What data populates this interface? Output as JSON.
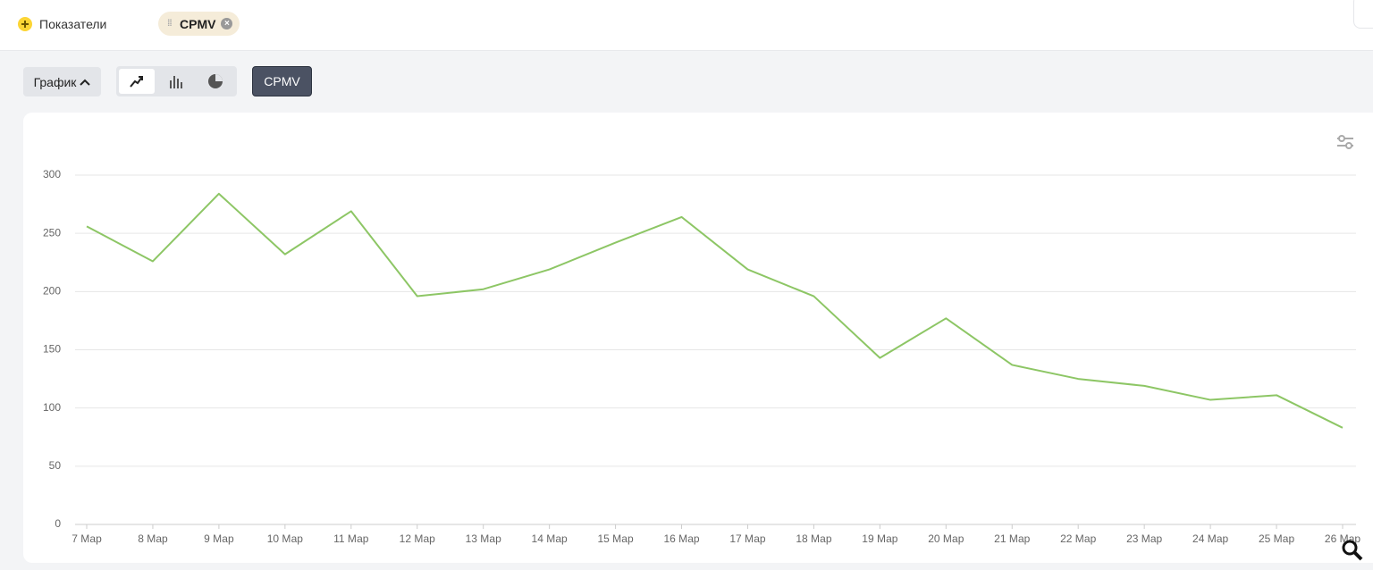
{
  "toolbar": {
    "metrics_button": "Показатели",
    "metric_chip": "CPMV",
    "view_button": "График",
    "metric_button": "CPMV"
  },
  "chart_data": {
    "type": "line",
    "categories": [
      "7 Мар",
      "8 Мар",
      "9 Мар",
      "10 Мар",
      "11 Мар",
      "12 Мар",
      "13 Мар",
      "14 Мар",
      "15 Мар",
      "16 Мар",
      "17 Мар",
      "18 Мар",
      "19 Мар",
      "20 Мар",
      "21 Мар",
      "22 Мар",
      "23 Мар",
      "24 Мар",
      "25 Мар",
      "26 Мар"
    ],
    "values": [
      256,
      226,
      284,
      232,
      269,
      196,
      202,
      219,
      242,
      264,
      219,
      196,
      143,
      177,
      137,
      125,
      119,
      107,
      111,
      83
    ],
    "color": "#8dc665",
    "ylim": [
      0,
      300
    ],
    "yticks": [
      0,
      50,
      100,
      150,
      200,
      250,
      300
    ],
    "grid": true
  }
}
